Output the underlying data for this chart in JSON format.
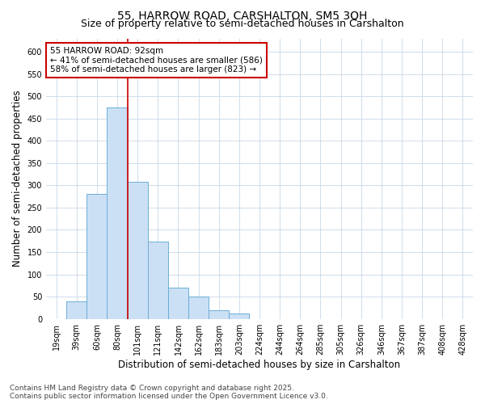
{
  "title": "55, HARROW ROAD, CARSHALTON, SM5 3QH",
  "subtitle": "Size of property relative to semi-detached houses in Carshalton",
  "xlabel": "Distribution of semi-detached houses by size in Carshalton",
  "ylabel": "Number of semi-detached properties",
  "categories": [
    "19sqm",
    "39sqm",
    "60sqm",
    "80sqm",
    "101sqm",
    "121sqm",
    "142sqm",
    "162sqm",
    "183sqm",
    "203sqm",
    "224sqm",
    "244sqm",
    "264sqm",
    "285sqm",
    "305sqm",
    "326sqm",
    "346sqm",
    "367sqm",
    "387sqm",
    "408sqm",
    "428sqm"
  ],
  "values": [
    0,
    40,
    280,
    475,
    308,
    173,
    70,
    50,
    20,
    12,
    0,
    0,
    0,
    0,
    0,
    0,
    0,
    0,
    0,
    0,
    0
  ],
  "bar_color": "#cce0f5",
  "bar_edge_color": "#6baed6",
  "vline_x_index": 3.5,
  "vline_color": "#cc0000",
  "annotation_text": "55 HARROW ROAD: 92sqm\n← 41% of semi-detached houses are smaller (586)\n58% of semi-detached houses are larger (823) →",
  "annotation_box_facecolor": "#ffffff",
  "annotation_box_edgecolor": "#cc0000",
  "footer_text": "Contains HM Land Registry data © Crown copyright and database right 2025.\nContains public sector information licensed under the Open Government Licence v3.0.",
  "ylim": [
    0,
    630
  ],
  "yticks": [
    0,
    50,
    100,
    150,
    200,
    250,
    300,
    350,
    400,
    450,
    500,
    550,
    600
  ],
  "background_color": "#ffffff",
  "grid_color": "#c8d8e8",
  "title_fontsize": 10,
  "subtitle_fontsize": 9,
  "axis_label_fontsize": 8.5,
  "tick_fontsize": 7,
  "annotation_fontsize": 7.5,
  "footer_fontsize": 6.5
}
